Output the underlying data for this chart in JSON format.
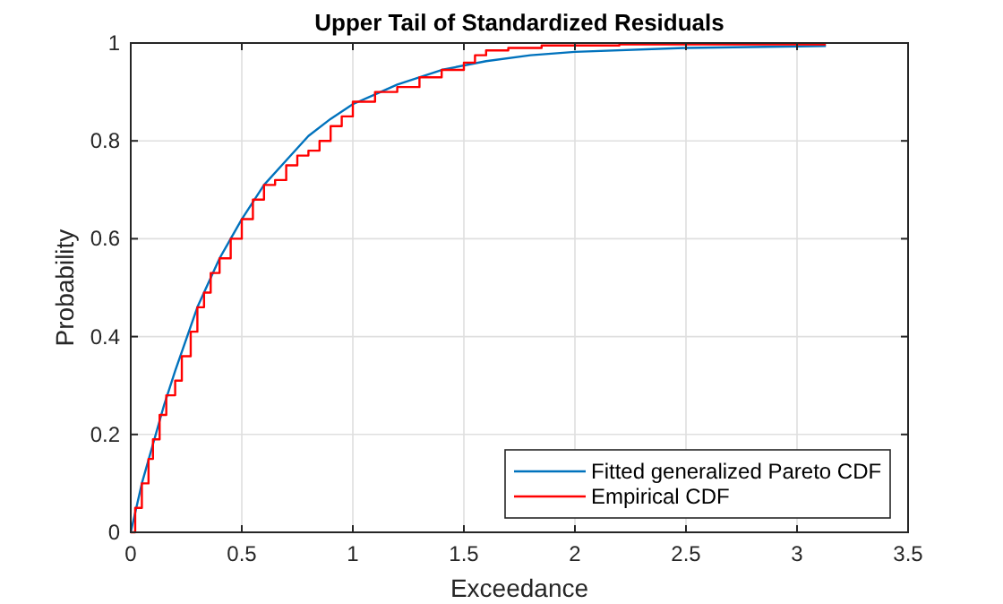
{
  "chart_data": {
    "type": "line",
    "title": "Upper Tail of Standardized Residuals",
    "xlabel": "Exceedance",
    "ylabel": "Probability",
    "xlim": [
      0,
      3.5
    ],
    "ylim": [
      0,
      1
    ],
    "xticks": [
      0,
      0.5,
      1,
      1.5,
      2,
      2.5,
      3,
      3.5
    ],
    "yticks": [
      0,
      0.2,
      0.4,
      0.6,
      0.8,
      1
    ],
    "grid": true,
    "legend": "bottom right",
    "series": [
      {
        "name": "Fitted generalized Pareto CDF",
        "color": "#0072bd",
        "x": [
          0,
          0.05,
          0.1,
          0.15,
          0.2,
          0.3,
          0.4,
          0.5,
          0.6,
          0.7,
          0.8,
          0.9,
          1.0,
          1.1,
          1.2,
          1.4,
          1.6,
          1.8,
          2.0,
          2.5,
          3.0,
          3.13
        ],
        "values": [
          0,
          0.1,
          0.18,
          0.26,
          0.33,
          0.46,
          0.56,
          0.64,
          0.71,
          0.76,
          0.81,
          0.845,
          0.875,
          0.895,
          0.915,
          0.945,
          0.963,
          0.975,
          0.982,
          0.99,
          0.993,
          0.994
        ]
      },
      {
        "name": "Empirical CDF",
        "color": "#ff0000",
        "type": "step",
        "x": [
          0,
          0.02,
          0.05,
          0.08,
          0.1,
          0.13,
          0.16,
          0.2,
          0.23,
          0.27,
          0.3,
          0.33,
          0.36,
          0.4,
          0.45,
          0.5,
          0.55,
          0.6,
          0.65,
          0.7,
          0.75,
          0.8,
          0.85,
          0.9,
          0.95,
          1.0,
          1.1,
          1.2,
          1.3,
          1.4,
          1.5,
          1.55,
          1.6,
          1.7,
          1.85,
          2.2,
          3.13
        ],
        "values": [
          0,
          0.05,
          0.1,
          0.15,
          0.19,
          0.24,
          0.28,
          0.31,
          0.36,
          0.41,
          0.46,
          0.49,
          0.53,
          0.56,
          0.6,
          0.64,
          0.68,
          0.71,
          0.72,
          0.75,
          0.77,
          0.78,
          0.8,
          0.83,
          0.85,
          0.88,
          0.9,
          0.91,
          0.93,
          0.945,
          0.96,
          0.975,
          0.985,
          0.99,
          0.995,
          0.997,
          0.997
        ]
      }
    ]
  }
}
